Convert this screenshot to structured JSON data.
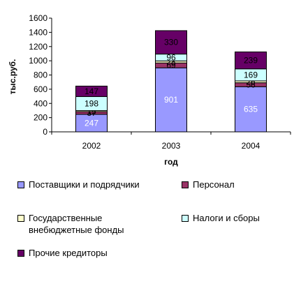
{
  "chart_data": {
    "type": "bar",
    "stacked": true,
    "categories": [
      "2002",
      "2003",
      "2004"
    ],
    "ylabel": "тыс.руб.",
    "xlabel": "год",
    "ylim": [
      0,
      1600
    ],
    "yticks": [
      0,
      200,
      400,
      600,
      800,
      1000,
      1200,
      1400,
      1600
    ],
    "legend_position": "bottom",
    "series": [
      {
        "name": "Поставщики и подрядчики",
        "values": [
          247,
          901,
          635
        ],
        "color": "#9999ff",
        "label_color": "#ffffff"
      },
      {
        "name": "Персонал",
        "values": [
          37,
          69,
          56
        ],
        "color": "#993366",
        "label_color": "#000000"
      },
      {
        "name": "Государственные\nвнебюджетные фонды",
        "values": [
          15,
          28,
          26
        ],
        "color": "#ffffcc",
        "label_color": "#000000"
      },
      {
        "name": "Налоги и сборы",
        "values": [
          198,
          96,
          169
        ],
        "color": "#ccffff",
        "label_color": "#000000"
      },
      {
        "name": "Прочие кредиторы",
        "values": [
          147,
          330,
          239
        ],
        "color": "#660066",
        "label_color": "#000000"
      }
    ]
  }
}
